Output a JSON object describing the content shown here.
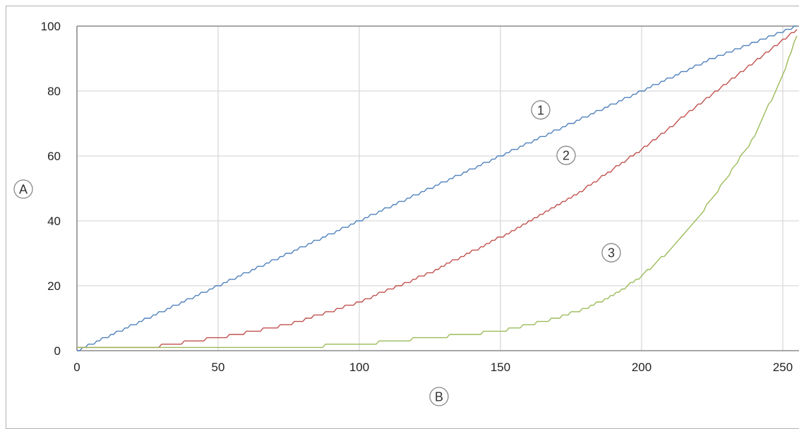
{
  "chart_data": {
    "type": "line",
    "title": "",
    "xlabel": "B",
    "ylabel": "A",
    "xlim": [
      0,
      255
    ],
    "ylim": [
      0,
      100
    ],
    "x_ticks": [
      "0",
      "50",
      "100",
      "150",
      "200",
      "250"
    ],
    "y_ticks": [
      "0",
      "20",
      "40",
      "60",
      "80",
      "100"
    ],
    "grid": true,
    "legend": "none",
    "series": [
      {
        "name": "1",
        "color": "#4f81bd",
        "x": [
          0,
          25,
          50,
          75,
          100,
          125,
          150,
          175,
          200,
          225,
          255
        ],
        "y": [
          0,
          10,
          20,
          30,
          40,
          50,
          60,
          70,
          80,
          90,
          100
        ]
      },
      {
        "name": "2",
        "color": "#c0504d",
        "x": [
          0,
          25,
          50,
          75,
          100,
          125,
          150,
          175,
          200,
          225,
          255
        ],
        "y": [
          1,
          1,
          4,
          8,
          15,
          24,
          35,
          47,
          62,
          79,
          99
        ]
      },
      {
        "name": "3",
        "color": "#9bbb59",
        "x": [
          0,
          25,
          50,
          75,
          100,
          125,
          150,
          160,
          170,
          180,
          190,
          200,
          210,
          220,
          230,
          240,
          250,
          255
        ],
        "y": [
          1,
          1,
          1,
          1,
          2,
          4,
          6,
          8,
          10,
          13,
          17,
          23,
          31,
          41,
          53,
          66,
          85,
          97
        ]
      }
    ]
  }
}
